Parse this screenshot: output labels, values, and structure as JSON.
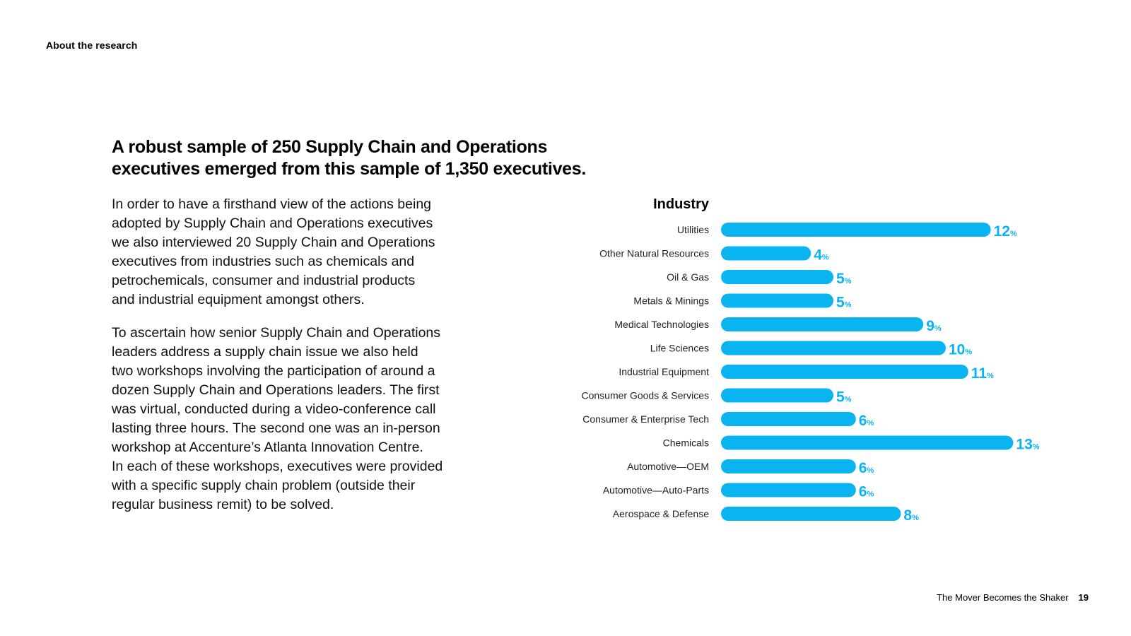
{
  "section_label": "About the research",
  "headline": "A robust sample of 250 Supply Chain and Operations\nexecutives emerged from this sample of 1,350 executives.",
  "body_paragraphs": [
    "In order to have a firsthand view of the actions being\nadopted by Supply Chain and Operations executives\nwe also interviewed 20 Supply Chain and Operations\nexecutives from industries such as chemicals and\npetrochemicals, consumer and industrial products\nand industrial equipment amongst others.",
    "To ascertain how senior Supply Chain and Operations\nleaders address a supply chain issue we also held\ntwo workshops involving the participation of around a\ndozen Supply Chain and Operations leaders. The first\nwas virtual, conducted during a video-conference call\nlasting three hours. The second one was an in-person\nworkshop at Accenture’s Atlanta Innovation Centre.\nIn each of these workshops, executives were provided\nwith a specific supply chain problem (outside their\nregular business remit) to be solved."
  ],
  "chart_data": {
    "type": "bar",
    "orientation": "horizontal",
    "title": "Industry",
    "value_suffix": "%",
    "bar_color": "#0AB4F0",
    "categories": [
      "Utilities",
      "Other Natural Resources",
      "Oil & Gas",
      "Metals & Minings",
      "Medical Technologies",
      "Life Sciences",
      "Industrial Equipment",
      "Consumer Goods & Services",
      "Consumer & Enterprise Tech",
      "Chemicals",
      "Automotive—OEM",
      "Automotive—Auto-Parts",
      "Aerospace & Defense"
    ],
    "values": [
      12,
      4,
      5,
      5,
      9,
      10,
      11,
      5,
      6,
      13,
      6,
      6,
      8
    ]
  },
  "footer": {
    "publication_title": "The Mover Becomes the Shaker",
    "page_number": "19"
  }
}
